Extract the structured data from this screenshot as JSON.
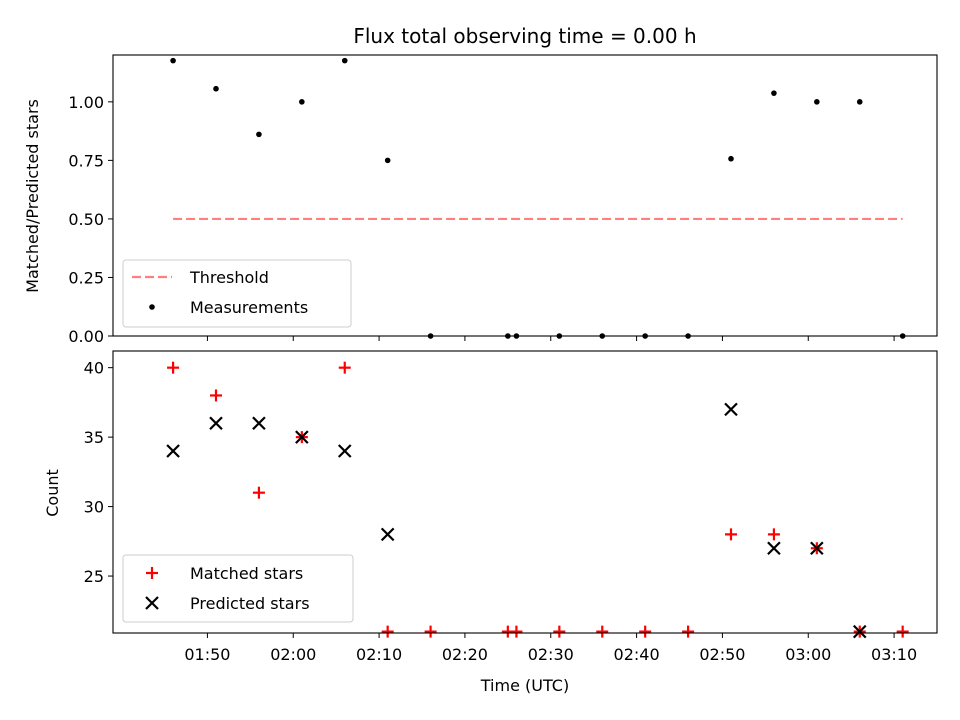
{
  "chart_data": [
    {
      "type": "scatter",
      "title": "Flux total observing time = 0.00 h",
      "xlabel": "",
      "ylabel": "Matched/Predicted stars",
      "ylim": [
        0,
        1.2
      ],
      "yticks": [
        0.0,
        0.25,
        0.5,
        0.75,
        1.0
      ],
      "ytick_labels": [
        "0.00",
        "0.25",
        "0.50",
        "0.75",
        "1.00"
      ],
      "xlim": [
        "01:39",
        "03:15"
      ],
      "legend_position": "lower-left",
      "threshold": {
        "name": "Threshold",
        "color": "#ff7f7f",
        "style": "dashed",
        "y": 0.5,
        "x_start": "01:46",
        "x_end": "03:11"
      },
      "series": [
        {
          "name": "Measurements",
          "marker": "dot",
          "color": "#000000",
          "points": [
            {
              "x": "01:46",
              "y": 1.176
            },
            {
              "x": "01:51",
              "y": 1.056
            },
            {
              "x": "01:56",
              "y": 0.861
            },
            {
              "x": "02:01",
              "y": 1.0
            },
            {
              "x": "02:06",
              "y": 1.176
            },
            {
              "x": "02:11",
              "y": 0.75
            },
            {
              "x": "02:16",
              "y": 0.0
            },
            {
              "x": "02:25",
              "y": 0.0
            },
            {
              "x": "02:26",
              "y": 0.0
            },
            {
              "x": "02:31",
              "y": 0.0
            },
            {
              "x": "02:36",
              "y": 0.0
            },
            {
              "x": "02:41",
              "y": 0.0
            },
            {
              "x": "02:46",
              "y": 0.0
            },
            {
              "x": "02:51",
              "y": 0.757
            },
            {
              "x": "02:56",
              "y": 1.037
            },
            {
              "x": "03:01",
              "y": 1.0
            },
            {
              "x": "03:06",
              "y": 1.0
            },
            {
              "x": "03:11",
              "y": 0.0
            }
          ]
        }
      ]
    },
    {
      "type": "scatter",
      "title": "",
      "xlabel": "Time (UTC)",
      "ylabel": "Count",
      "ylim": [
        20.9,
        41.2
      ],
      "yticks": [
        25,
        30,
        35,
        40
      ],
      "ytick_labels": [
        "25",
        "30",
        "35",
        "40"
      ],
      "xlim": [
        "01:39",
        "03:15"
      ],
      "xticks": [
        "01:50",
        "02:00",
        "02:10",
        "02:20",
        "02:30",
        "02:40",
        "02:50",
        "03:00",
        "03:10"
      ],
      "legend_position": "lower-left",
      "series": [
        {
          "name": "Matched stars",
          "marker": "plus",
          "color": "#ff0000",
          "points": [
            {
              "x": "01:46",
              "y": 40
            },
            {
              "x": "01:51",
              "y": 38
            },
            {
              "x": "01:56",
              "y": 31
            },
            {
              "x": "02:01",
              "y": 35
            },
            {
              "x": "02:06",
              "y": 40
            },
            {
              "x": "02:11",
              "y": 21
            },
            {
              "x": "02:16",
              "y": 21
            },
            {
              "x": "02:25",
              "y": 21
            },
            {
              "x": "02:26",
              "y": 21
            },
            {
              "x": "02:31",
              "y": 21
            },
            {
              "x": "02:36",
              "y": 21
            },
            {
              "x": "02:41",
              "y": 21
            },
            {
              "x": "02:46",
              "y": 21
            },
            {
              "x": "02:51",
              "y": 28
            },
            {
              "x": "02:56",
              "y": 28
            },
            {
              "x": "03:01",
              "y": 27
            },
            {
              "x": "03:06",
              "y": 21
            },
            {
              "x": "03:11",
              "y": 21
            }
          ]
        },
        {
          "name": "Predicted stars",
          "marker": "x",
          "color": "#000000",
          "points": [
            {
              "x": "01:46",
              "y": 34
            },
            {
              "x": "01:51",
              "y": 36
            },
            {
              "x": "01:56",
              "y": 36
            },
            {
              "x": "02:01",
              "y": 35
            },
            {
              "x": "02:06",
              "y": 34
            },
            {
              "x": "02:11",
              "y": 28
            },
            {
              "x": "02:51",
              "y": 37
            },
            {
              "x": "02:56",
              "y": 27
            },
            {
              "x": "03:01",
              "y": 27
            },
            {
              "x": "03:06",
              "y": 21
            }
          ]
        }
      ]
    }
  ]
}
